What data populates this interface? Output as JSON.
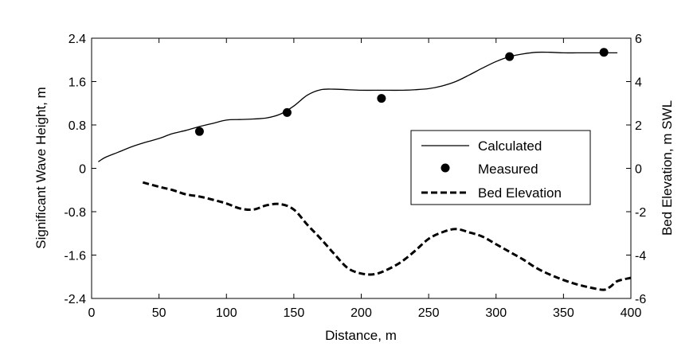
{
  "chart_data": {
    "type": "line",
    "title": "",
    "xlabel": "Distance, m",
    "ylabel_left": "Significant Wave Height, m",
    "ylabel_right": "Bed Elevation, m SWL",
    "xlim": [
      0,
      400
    ],
    "ylim_left": [
      -2.4,
      2.4
    ],
    "ylim_right": [
      -6,
      6
    ],
    "x_ticks": [
      "0",
      "50",
      "100",
      "150",
      "200",
      "250",
      "300",
      "350",
      "400"
    ],
    "y_left_ticks": [
      "2.4",
      "1.6",
      "0.8",
      "0",
      "-0.8",
      "-1.6",
      "-2.4"
    ],
    "y_right_ticks": [
      "6",
      "4",
      "2",
      "0",
      "-2",
      "-4",
      "-6"
    ],
    "grid": false,
    "legend_position": "center-right",
    "series": [
      {
        "name": "Calculated",
        "axis": "left",
        "style": "solid",
        "x": [
          5,
          10,
          20,
          30,
          40,
          50,
          60,
          70,
          80,
          90,
          100,
          110,
          120,
          130,
          140,
          150,
          160,
          170,
          180,
          190,
          200,
          210,
          220,
          230,
          240,
          250,
          260,
          270,
          280,
          290,
          300,
          310,
          320,
          330,
          340,
          350,
          360,
          370,
          380,
          390
        ],
        "y": [
          0.12,
          0.2,
          0.3,
          0.4,
          0.48,
          0.55,
          0.64,
          0.7,
          0.77,
          0.83,
          0.89,
          0.9,
          0.91,
          0.93,
          1.0,
          1.15,
          1.35,
          1.45,
          1.46,
          1.45,
          1.44,
          1.44,
          1.44,
          1.44,
          1.45,
          1.47,
          1.52,
          1.6,
          1.72,
          1.85,
          1.97,
          2.06,
          2.11,
          2.14,
          2.14,
          2.13,
          2.13,
          2.13,
          2.13,
          2.13
        ]
      },
      {
        "name": "Measured",
        "axis": "left",
        "style": "marker",
        "x": [
          80,
          145,
          215,
          310,
          380
        ],
        "y": [
          0.68,
          1.03,
          1.29,
          2.06,
          2.14
        ]
      },
      {
        "name": "Bed Elevation",
        "axis": "right",
        "style": "dashed",
        "x": [
          38,
          50,
          60,
          70,
          80,
          90,
          100,
          110,
          120,
          130,
          140,
          150,
          160,
          170,
          180,
          190,
          200,
          210,
          220,
          230,
          240,
          250,
          260,
          270,
          280,
          290,
          300,
          310,
          320,
          330,
          340,
          350,
          360,
          370,
          380,
          385,
          390,
          400
        ],
        "y": [
          -0.65,
          -0.85,
          -1.0,
          -1.2,
          -1.3,
          -1.45,
          -1.62,
          -1.85,
          -1.9,
          -1.7,
          -1.65,
          -1.9,
          -2.6,
          -3.25,
          -3.95,
          -4.6,
          -4.85,
          -4.88,
          -4.65,
          -4.3,
          -3.8,
          -3.25,
          -2.95,
          -2.8,
          -2.95,
          -3.15,
          -3.5,
          -3.85,
          -4.2,
          -4.6,
          -4.9,
          -5.15,
          -5.35,
          -5.5,
          -5.6,
          -5.45,
          -5.2,
          -5.05
        ]
      }
    ]
  }
}
